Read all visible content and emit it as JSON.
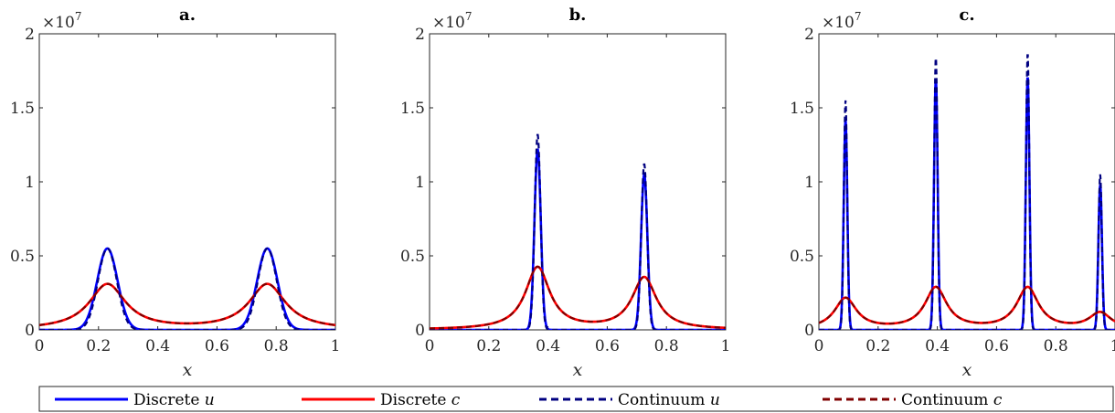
{
  "chart_data": [
    {
      "type": "line",
      "title": "a.",
      "xlabel": "x",
      "xlim": [
        0,
        1
      ],
      "ylim": [
        0,
        20000000
      ],
      "y_multiplier": "×10^7",
      "x_ticks": [
        "0",
        "0.2",
        "0.4",
        "0.6",
        "0.8",
        "1"
      ],
      "y_ticks": [
        "0",
        "0.5",
        "1",
        "1.5",
        "2"
      ],
      "peaks": [
        {
          "x": 0.23,
          "u": 5500000,
          "c": 3050000
        },
        {
          "x": 0.77,
          "u": 5500000,
          "c": 3050000
        }
      ]
    },
    {
      "type": "line",
      "title": "b.",
      "xlabel": "x",
      "xlim": [
        0,
        1
      ],
      "ylim": [
        0,
        20000000
      ],
      "y_multiplier": "×10^7",
      "x_ticks": [
        "0",
        "0.2",
        "0.4",
        "0.6",
        "0.8",
        "1"
      ],
      "y_ticks": [
        "0",
        "0.5",
        "1",
        "1.5",
        "2"
      ],
      "peaks": [
        {
          "x": 0.365,
          "u": 13200000,
          "u_discrete": 12200000,
          "c": 4200000
        },
        {
          "x": 0.725,
          "u": 11200000,
          "u_discrete": 10500000,
          "c": 3500000
        }
      ]
    },
    {
      "type": "line",
      "title": "c.",
      "xlabel": "x",
      "xlim": [
        0,
        1
      ],
      "ylim": [
        0,
        20000000
      ],
      "y_multiplier": "×10^7",
      "x_ticks": [
        "0",
        "0.2",
        "0.4",
        "0.6",
        "0.8",
        "1"
      ],
      "y_ticks": [
        "0",
        "0.5",
        "1",
        "1.5",
        "2"
      ],
      "peaks": [
        {
          "x": 0.09,
          "u": 15500000,
          "u_discrete": 14200000,
          "c": 2100000
        },
        {
          "x": 0.395,
          "u": 18500000,
          "u_discrete": 17000000,
          "c": 2800000
        },
        {
          "x": 0.705,
          "u": 18700000,
          "u_discrete": 17100000,
          "c": 2800000
        },
        {
          "x": 0.95,
          "u": 10500000,
          "u_discrete": 9800000,
          "c": 1100000
        }
      ]
    }
  ],
  "legend": [
    {
      "name": "Discrete",
      "var": "u",
      "color": "#0000ff",
      "dash": false
    },
    {
      "name": "Discrete",
      "var": "c",
      "color": "#ff0000",
      "dash": false
    },
    {
      "name": "Continuum",
      "var": "u",
      "color": "#000080",
      "dash": true
    },
    {
      "name": "Continuum",
      "var": "c",
      "color": "#800000",
      "dash": true
    }
  ],
  "colors": {
    "discrete_u": "#0000ff",
    "discrete_c": "#ff0000",
    "continuum_u": "#000080",
    "continuum_c": "#800000"
  }
}
